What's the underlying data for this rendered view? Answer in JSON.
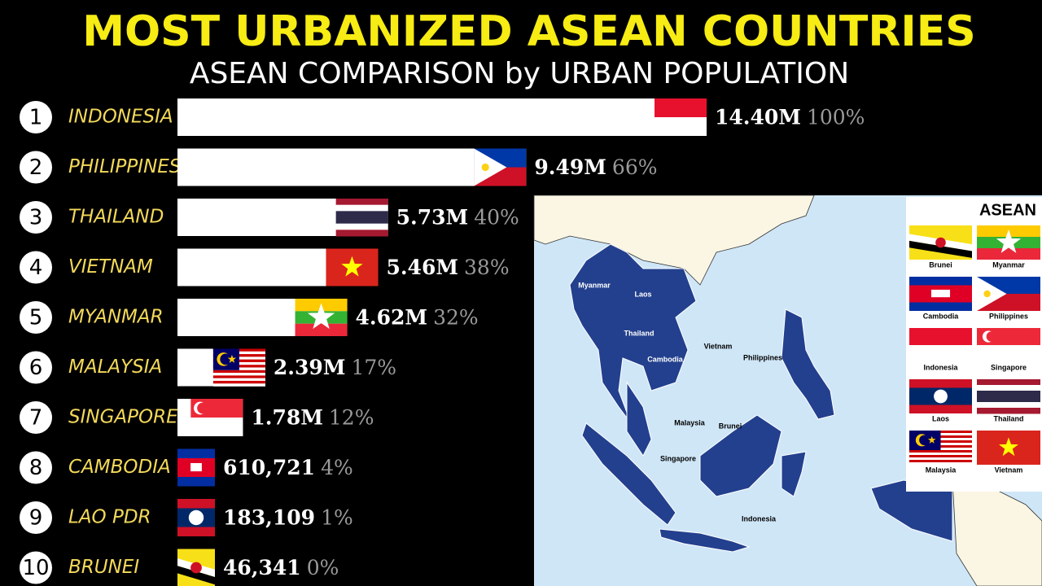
{
  "chart_data": {
    "type": "bar",
    "orientation": "horizontal",
    "title": "MOST URBANIZED ASEAN COUNTRIES",
    "subtitle": "ASEAN COMPARISON by URBAN POPULATION",
    "ranks": [
      1,
      2,
      3,
      4,
      5,
      6,
      7,
      8,
      9,
      10
    ],
    "categories": [
      "INDONESIA",
      "PHILIPPINES",
      "THAILAND",
      "VIETNAM",
      "MYANMAR",
      "MALAYSIA",
      "SINGAPORE",
      "CAMBODIA",
      "LAO PDR",
      "BRUNEI"
    ],
    "values": [
      14400000,
      9490000,
      5730000,
      5460000,
      4620000,
      2390000,
      1780000,
      610721,
      183109,
      46341
    ],
    "value_labels": [
      "14.40M",
      "9.49M",
      "5.73M",
      "5.46M",
      "4.62M",
      "2.39M",
      "1.78M",
      "610,721",
      "183,109",
      "46,341"
    ],
    "percent_labels": [
      "100%",
      "66%",
      "40%",
      "38%",
      "32%",
      "17%",
      "12%",
      "4%",
      "1%",
      "0%"
    ],
    "color": "#ffffff"
  },
  "map": {
    "labels": [
      "Myanmar",
      "Laos",
      "Thailand",
      "Cambodia",
      "Vietnam",
      "Philippines",
      "Malaysia",
      "Brunei",
      "Singapore",
      "Indonesia"
    ],
    "legend": {
      "title": "ASEAN",
      "items": [
        "Brunei",
        "Myanmar",
        "Cambodia",
        "Philippines",
        "Indonesia",
        "Singapore",
        "Laos",
        "Thailand",
        "Malaysia",
        "Vietnam"
      ]
    }
  }
}
